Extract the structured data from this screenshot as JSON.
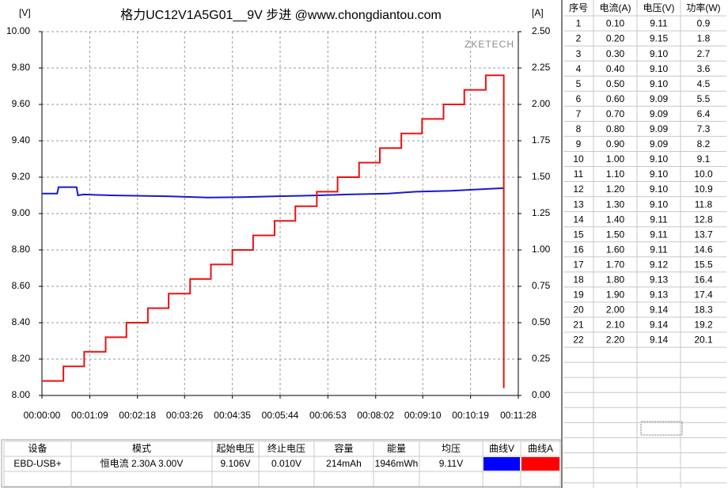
{
  "chart_data": {
    "type": "line",
    "title": "格力UC12V1A5G01__9V 步进 @www.chongdiantou.com",
    "y_label": "[V]",
    "y2_label": "[A]",
    "watermark": "ZKETECH",
    "xlim": [
      0,
      688
    ],
    "xticks": [
      {
        "value": 0,
        "label": "00:00:00"
      },
      {
        "value": 69,
        "label": "00:01:09"
      },
      {
        "value": 138,
        "label": "00:02:18"
      },
      {
        "value": 206,
        "label": "00:03:26"
      },
      {
        "value": 275,
        "label": "00:04:35"
      },
      {
        "value": 344,
        "label": "00:05:44"
      },
      {
        "value": 413,
        "label": "00:06:53"
      },
      {
        "value": 482,
        "label": "00:08:02"
      },
      {
        "value": 550,
        "label": "00:09:10"
      },
      {
        "value": 619,
        "label": "00:10:19"
      },
      {
        "value": 688,
        "label": "00:11:28"
      }
    ],
    "ylim": [
      8,
      10
    ],
    "yticks": [
      {
        "value": 8,
        "label": "8.00"
      },
      {
        "value": 8.2,
        "label": "8.20"
      },
      {
        "value": 8.4,
        "label": "8.40"
      },
      {
        "value": 8.6,
        "label": "8.60"
      },
      {
        "value": 8.8,
        "label": "8.80"
      },
      {
        "value": 9,
        "label": "9.00"
      },
      {
        "value": 9.2,
        "label": "9.20"
      },
      {
        "value": 9.4,
        "label": "9.40"
      },
      {
        "value": 9.6,
        "label": "9.60"
      },
      {
        "value": 9.8,
        "label": "9.80"
      },
      {
        "value": 10,
        "label": "10.00"
      }
    ],
    "y2lim": [
      0,
      2.5
    ],
    "y2ticks": [
      {
        "value": 0,
        "label": "0.00"
      },
      {
        "value": 0.25,
        "label": "0.25"
      },
      {
        "value": 0.5,
        "label": "0.50"
      },
      {
        "value": 0.75,
        "label": "0.75"
      },
      {
        "value": 1,
        "label": "1.00"
      },
      {
        "value": 1.25,
        "label": "1.25"
      },
      {
        "value": 1.5,
        "label": "1.50"
      },
      {
        "value": 1.75,
        "label": "1.75"
      },
      {
        "value": 2,
        "label": "2.00"
      },
      {
        "value": 2.25,
        "label": "2.25"
      },
      {
        "value": 2.5,
        "label": "2.50"
      }
    ],
    "grid": true,
    "series": [
      {
        "color": "#1818d0",
        "x": [
          0,
          22,
          24,
          50,
          52,
          60,
          100,
          180,
          240,
          290,
          340,
          400,
          440,
          500,
          540,
          590,
          640,
          667
        ],
        "values": [
          9.11,
          9.11,
          9.145,
          9.145,
          9.1,
          9.105,
          9.1,
          9.095,
          9.088,
          9.09,
          9.095,
          9.1,
          9.105,
          9.11,
          9.12,
          9.125,
          9.135,
          9.14
        ]
      },
      {
        "color": "#ee1111",
        "axis": "y2",
        "x": [
          0,
          31,
          31,
          61,
          61,
          92,
          92,
          122,
          122,
          153,
          153,
          183,
          183,
          214,
          214,
          244,
          244,
          275,
          275,
          305,
          305,
          336,
          336,
          366,
          366,
          397,
          397,
          427,
          427,
          458,
          458,
          488,
          488,
          519,
          519,
          549,
          549,
          580,
          580,
          610,
          610,
          641,
          641,
          667,
          667
        ],
        "values": [
          0.1,
          0.1,
          0.2,
          0.2,
          0.3,
          0.3,
          0.4,
          0.4,
          0.5,
          0.5,
          0.6,
          0.6,
          0.7,
          0.7,
          0.8,
          0.8,
          0.9,
          0.9,
          1.0,
          1.0,
          1.1,
          1.1,
          1.2,
          1.2,
          1.3,
          1.3,
          1.4,
          1.4,
          1.5,
          1.5,
          1.6,
          1.6,
          1.7,
          1.7,
          1.8,
          1.8,
          1.9,
          1.9,
          2.0,
          2.0,
          2.1,
          2.1,
          2.2,
          2.2,
          0.05
        ]
      }
    ]
  },
  "readings_table": {
    "headers": [
      "序号",
      "电流(A)",
      "电压(V)",
      "功率(W)"
    ],
    "rows": [
      [
        "1",
        "0.10",
        "9.11",
        "0.9"
      ],
      [
        "2",
        "0.20",
        "9.15",
        "1.8"
      ],
      [
        "3",
        "0.30",
        "9.10",
        "2.7"
      ],
      [
        "4",
        "0.40",
        "9.10",
        "3.6"
      ],
      [
        "5",
        "0.50",
        "9.10",
        "4.5"
      ],
      [
        "6",
        "0.60",
        "9.09",
        "5.5"
      ],
      [
        "7",
        "0.70",
        "9.09",
        "6.4"
      ],
      [
        "8",
        "0.80",
        "9.09",
        "7.3"
      ],
      [
        "9",
        "0.90",
        "9.09",
        "8.2"
      ],
      [
        "10",
        "1.00",
        "9.10",
        "9.1"
      ],
      [
        "11",
        "1.10",
        "9.10",
        "10.0"
      ],
      [
        "12",
        "1.20",
        "9.10",
        "10.9"
      ],
      [
        "13",
        "1.30",
        "9.10",
        "11.8"
      ],
      [
        "14",
        "1.40",
        "9.11",
        "12.8"
      ],
      [
        "15",
        "1.50",
        "9.11",
        "13.7"
      ],
      [
        "16",
        "1.60",
        "9.11",
        "14.6"
      ],
      [
        "17",
        "1.70",
        "9.12",
        "15.5"
      ],
      [
        "18",
        "1.80",
        "9.13",
        "16.4"
      ],
      [
        "19",
        "1.90",
        "9.13",
        "17.4"
      ],
      [
        "20",
        "2.00",
        "9.14",
        "18.3"
      ],
      [
        "21",
        "2.10",
        "9.14",
        "19.2"
      ],
      [
        "22",
        "2.20",
        "9.14",
        "20.1"
      ]
    ]
  },
  "summary_table": {
    "headers": [
      "设备",
      "模式",
      "起始电压",
      "终止电压",
      "容量",
      "能量",
      "均压",
      "曲线V",
      "曲线A"
    ],
    "rows": [
      [
        "EBD-USB+",
        "恒电流  2.30A  3.00V",
        "9.106V",
        "0.010V",
        "214mAh",
        "1946mWh",
        "9.11V"
      ]
    ]
  }
}
